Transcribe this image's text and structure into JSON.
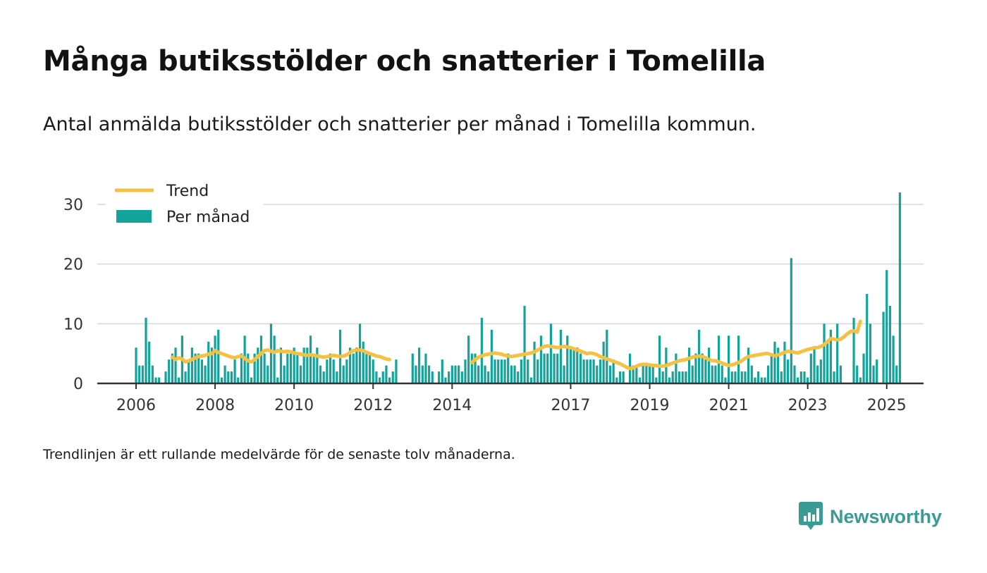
{
  "title": "Många butiksstölder och snatterier i Tomelilla",
  "subtitle": "Antal anmälda butiksstölder och snatterier per månad i Tomelilla kommun.",
  "footnote": "Trendlinjen är ett rullande medelvärde för de senaste tolv månaderna.",
  "brand": {
    "name": "Newsworthy",
    "color": "#3a9a94"
  },
  "colors": {
    "bar": "#13a39a",
    "trend": "#f5c142",
    "grid": "#d9d9d9",
    "axis": "#333333"
  },
  "chart_data": {
    "type": "bar",
    "title": "",
    "xlabel": "",
    "ylabel": "",
    "ylim": [
      0,
      33
    ],
    "yticks": [
      0,
      10,
      20,
      30
    ],
    "xticks": [
      {
        "label": "2006",
        "x": "2006-01"
      },
      {
        "label": "2008",
        "x": "2008-01"
      },
      {
        "label": "2010",
        "x": "2010-01"
      },
      {
        "label": "2012",
        "x": "2012-01"
      },
      {
        "label": "2014",
        "x": "2014-01"
      },
      {
        "label": "2017",
        "x": "2017-01"
      },
      {
        "label": "2019",
        "x": "2019-01"
      },
      {
        "label": "2021",
        "x": "2021-01"
      },
      {
        "label": "2023",
        "x": "2023-01"
      },
      {
        "label": "2025",
        "x": "2025-01"
      }
    ],
    "legend": {
      "position": "top-left",
      "entries": [
        {
          "name": "Trend",
          "kind": "line"
        },
        {
          "name": "Per månad",
          "kind": "bar"
        }
      ]
    },
    "start_month": "2006-01",
    "series": [
      {
        "name": "Per månad",
        "type": "bar",
        "values": [
          6,
          3,
          3,
          11,
          7,
          3,
          1,
          1,
          0,
          2,
          4,
          5,
          6,
          1,
          8,
          2,
          4,
          6,
          5,
          5,
          4,
          3,
          7,
          6,
          8,
          9,
          1,
          3,
          2,
          2,
          4,
          1,
          5,
          8,
          5,
          1,
          5,
          6,
          8,
          5,
          3,
          10,
          8,
          1,
          6,
          3,
          5,
          5,
          6,
          5,
          3,
          6,
          6,
          8,
          5,
          6,
          3,
          2,
          4,
          5,
          4,
          2,
          9,
          3,
          4,
          6,
          5,
          6,
          10,
          7,
          5,
          5,
          4,
          2,
          1,
          2,
          3,
          1,
          2,
          4,
          null,
          null,
          null,
          null,
          5,
          3,
          6,
          3,
          5,
          3,
          2,
          null,
          2,
          4,
          1,
          2,
          3,
          3,
          3,
          2,
          4,
          8,
          5,
          5,
          3,
          11,
          3,
          2,
          9,
          4,
          4,
          4,
          4,
          5,
          3,
          3,
          2,
          4,
          13,
          4,
          1,
          7,
          4,
          8,
          5,
          5,
          10,
          5,
          5,
          9,
          3,
          8,
          6,
          6,
          6,
          5,
          4,
          4,
          4,
          4,
          3,
          4,
          7,
          9,
          3,
          4,
          1,
          2,
          2,
          null,
          5,
          3,
          3,
          1,
          3,
          3,
          3,
          3,
          1,
          8,
          2,
          6,
          1,
          2,
          5,
          2,
          2,
          2,
          6,
          3,
          5,
          9,
          5,
          4,
          6,
          3,
          3,
          8,
          3,
          1,
          8,
          2,
          2,
          8,
          2,
          2,
          6,
          3,
          1,
          2,
          1,
          1,
          3,
          5,
          7,
          6,
          2,
          7,
          4,
          21,
          3,
          1,
          2,
          2,
          1,
          5,
          6,
          3,
          4,
          10,
          7,
          9,
          2,
          10,
          3,
          null,
          null,
          null,
          11,
          3,
          1,
          5,
          15,
          10,
          3,
          4,
          0,
          12,
          19,
          13,
          8,
          3,
          32
        ]
      },
      {
        "name": "Trend",
        "type": "line",
        "values": [
          null,
          null,
          null,
          null,
          null,
          null,
          null,
          null,
          null,
          null,
          null,
          4.4,
          4.0,
          4.3,
          4.1,
          3.6,
          3.8,
          4.0,
          4.3,
          4.5,
          4.6,
          4.7,
          4.9,
          5.0,
          5.5,
          5.2,
          5.0,
          4.8,
          4.6,
          4.4,
          4.3,
          4.5,
          4.6,
          4.2,
          3.8,
          3.6,
          4.0,
          4.5,
          5.0,
          5.5,
          5.6,
          5.4,
          5.2,
          5.5,
          5.4,
          5.3,
          5.4,
          5.3,
          5.1,
          5.0,
          4.9,
          4.8,
          4.7,
          4.8,
          4.7,
          4.6,
          4.5,
          4.4,
          4.5,
          4.6,
          4.7,
          4.6,
          4.5,
          4.6,
          4.8,
          5.2,
          5.5,
          5.6,
          5.6,
          5.5,
          5.2,
          5.0,
          4.8,
          4.6,
          4.5,
          4.3,
          4.1,
          4.0,
          null,
          null,
          null,
          null,
          null,
          null,
          null,
          null,
          null,
          null,
          null,
          null,
          null,
          null,
          null,
          null,
          null,
          null,
          null,
          null,
          null,
          null,
          null,
          null,
          3.5,
          4.0,
          4.4,
          4.6,
          4.8,
          4.9,
          5.0,
          5.1,
          5.0,
          4.9,
          4.7,
          4.6,
          4.5,
          4.6,
          4.7,
          4.8,
          4.9,
          5.0,
          5.1,
          5.3,
          5.6,
          5.9,
          6.2,
          6.3,
          6.2,
          6.1,
          6.0,
          6.1,
          6.2,
          6.1,
          6.0,
          5.8,
          5.6,
          5.4,
          5.2,
          5.0,
          5.1,
          5.0,
          4.8,
          4.5,
          4.3,
          4.1,
          3.9,
          3.7,
          3.5,
          3.3,
          3.0,
          2.7,
          2.5,
          2.6,
          2.9,
          3.1,
          3.2,
          3.2,
          3.1,
          3.0,
          3.0,
          2.9,
          2.9,
          3.0,
          3.2,
          3.4,
          3.6,
          3.8,
          3.9,
          4.0,
          4.2,
          4.4,
          4.5,
          4.6,
          4.5,
          4.3,
          4.0,
          3.8,
          3.8,
          3.6,
          3.4,
          3.2,
          3.0,
          3.1,
          3.3,
          3.5,
          3.8,
          4.2,
          4.5,
          4.6,
          4.7,
          4.8,
          4.9,
          5.0,
          5.0,
          4.8,
          4.6,
          4.8,
          5.0,
          5.2,
          5.4,
          5.3,
          5.2,
          5.1,
          5.3,
          5.5,
          5.7,
          5.8,
          6.0,
          6.0,
          6.2,
          6.5,
          7.0,
          7.5,
          7.4,
          7.3,
          7.4,
          7.8,
          8.3,
          8.7,
          8.8,
          8.6,
          10.4
        ]
      }
    ]
  }
}
